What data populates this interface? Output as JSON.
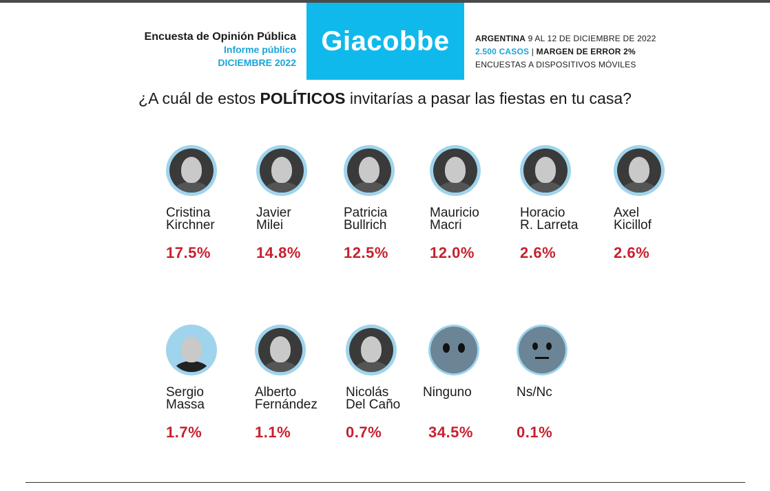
{
  "header": {
    "line1": "Encuesta de Opinión Pública",
    "line2": "Informe público",
    "line3": "DICIEMBRE 2022",
    "brand": "Giacobbe",
    "info_country": "ARGENTINA",
    "info_dates": " 9 AL 12 DE DICIEMBRE DE 2022",
    "info_cases": "2.500 CASOS",
    "info_sep": " | ",
    "info_margin": "MARGEN DE ERROR 2%",
    "info_method": "ENCUESTAS A DISPOSITIVOS MÓVILES"
  },
  "question": {
    "before": "¿A cuál de estos ",
    "emph": "POLÍTICOS",
    "after": " invitarías a pasar las fiestas en tu casa?"
  },
  "results": [
    {
      "line1": "Cristina",
      "line2": "Kirchner",
      "pct": "17.5%"
    },
    {
      "line1": "Javier",
      "line2": "Milei",
      "pct": "14.8%"
    },
    {
      "line1": "Patricia",
      "line2": "Bullrich",
      "pct": "12.5%"
    },
    {
      "line1": "Mauricio",
      "line2": "Macri",
      "pct": "12.0%"
    },
    {
      "line1": "Horacio",
      "line2": "R. Larreta",
      "pct": "2.6%"
    },
    {
      "line1": "Axel",
      "line2": "Kicillof",
      "pct": "2.6%"
    },
    {
      "line1": "Sergio",
      "line2": "Massa",
      "pct": "1.7%"
    },
    {
      "line1": "Alberto",
      "line2": "Fernández",
      "pct": "1.1%"
    },
    {
      "line1": "Nicolás",
      "line2": "Del Caño",
      "pct": "0.7%"
    },
    {
      "line1": "Ninguno",
      "line2": "",
      "pct": "34.5%"
    },
    {
      "line1": "Ns/Nc",
      "line2": "",
      "pct": "0.1%"
    }
  ]
}
